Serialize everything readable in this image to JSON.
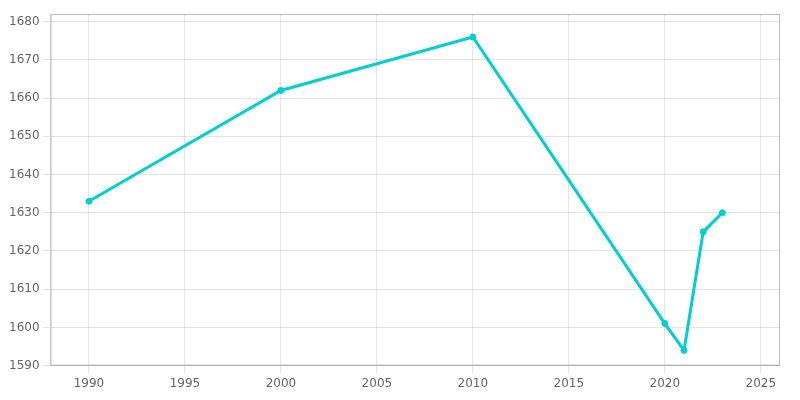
{
  "chart_data": {
    "type": "line",
    "x": [
      1990,
      2000,
      2010,
      2020,
      2021,
      2022,
      2023
    ],
    "values": [
      1633,
      1662,
      1676,
      1601,
      1594,
      1625,
      1630
    ],
    "color": "#00CED1",
    "marker": "circle",
    "xlim": [
      1988,
      2026
    ],
    "ylim": [
      1590,
      1682
    ],
    "xticks": [
      1990,
      1995,
      2000,
      2005,
      2010,
      2015,
      2020,
      2025
    ],
    "yticks": [
      1590,
      1600,
      1610,
      1620,
      1630,
      1640,
      1650,
      1660,
      1670,
      1680
    ],
    "grid": true
  }
}
